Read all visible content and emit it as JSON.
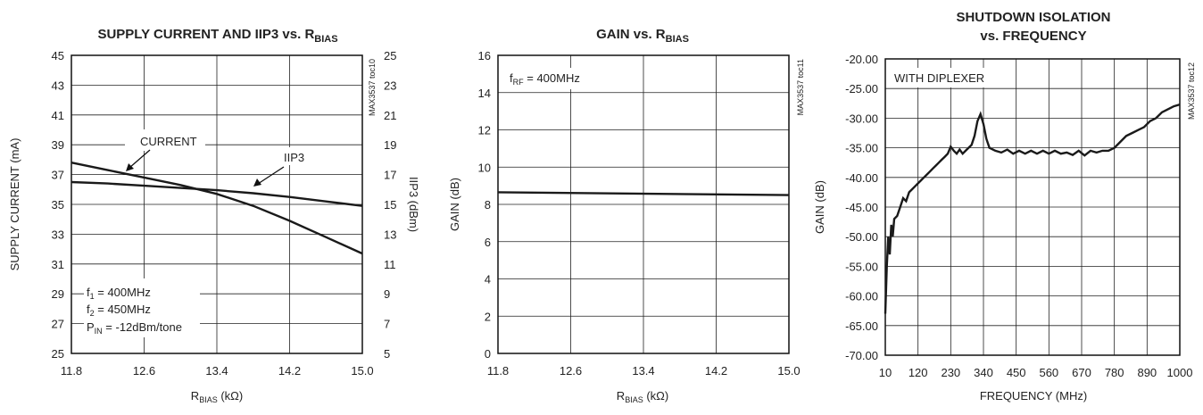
{
  "chart_data": [
    {
      "type": "line",
      "title": "SUPPLY CURRENT AND IIP3 vs. R",
      "title_sub": "BIAS",
      "xlabel": "R",
      "xlabel_sub": "BIAS",
      "xlabel_unit": " (kΩ)",
      "ylabel": "SUPPLY CURRENT (mA)",
      "y2label": "IIP3 (dBm)",
      "xlim": [
        11.8,
        15.0
      ],
      "ylim": [
        25,
        45
      ],
      "y2lim": [
        5,
        25
      ],
      "grid": true,
      "x_ticks": [
        "11.8",
        "12.6",
        "13.4",
        "14.2",
        "15.0"
      ],
      "y_ticks": [
        "45",
        "43",
        "41",
        "39",
        "37",
        "35",
        "33",
        "31",
        "29",
        "27",
        "25"
      ],
      "y2_ticks": [
        "25",
        "23",
        "21",
        "19",
        "17",
        "15",
        "13",
        "11",
        "9",
        "7",
        "5"
      ],
      "code": "MAX3537 toc10",
      "series": [
        {
          "name": "CURRENT",
          "axis": "left",
          "x": [
            11.8,
            12.2,
            12.6,
            13.0,
            13.4,
            13.8,
            14.2,
            14.6,
            15.0
          ],
          "y": [
            37.8,
            37.3,
            36.8,
            36.3,
            35.7,
            34.9,
            33.9,
            32.8,
            31.7
          ]
        },
        {
          "name": "IIP3",
          "axis": "right",
          "x": [
            11.8,
            12.2,
            12.6,
            13.0,
            13.4,
            13.8,
            14.2,
            14.6,
            15.0
          ],
          "y": [
            16.5,
            16.4,
            16.25,
            16.1,
            15.95,
            15.75,
            15.5,
            15.2,
            14.9
          ]
        }
      ],
      "annotations": [
        "CURRENT",
        "IIP3"
      ],
      "conditions": [
        {
          "base": "f",
          "sub": "1",
          "rest": " = 400MHz"
        },
        {
          "base": "f",
          "sub": "2",
          "rest": " = 450MHz"
        },
        {
          "base": "P",
          "sub": "IN",
          "rest": " = -12dBm/tone"
        }
      ]
    },
    {
      "type": "line",
      "title": "GAIN vs. R",
      "title_sub": "BIAS",
      "xlabel": "R",
      "xlabel_sub": "BIAS",
      "xlabel_unit": " (kΩ)",
      "ylabel": "GAIN (dB)",
      "xlim": [
        11.8,
        15.0
      ],
      "ylim": [
        0,
        16
      ],
      "grid": true,
      "x_ticks": [
        "11.8",
        "12.6",
        "13.4",
        "14.2",
        "15.0"
      ],
      "y_ticks": [
        "16",
        "14",
        "12",
        "10",
        "8",
        "6",
        "4",
        "2",
        "0"
      ],
      "code": "MAX3537 toc11",
      "series": [
        {
          "x": [
            11.8,
            15.0
          ],
          "y": [
            8.65,
            8.5
          ]
        }
      ],
      "conditions": [
        {
          "base": "f",
          "sub": "RF",
          "rest": " = 400MHz"
        }
      ]
    },
    {
      "type": "line",
      "title": "SHUTDOWN ISOLATION",
      "title_line2": "vs. FREQUENCY",
      "xlabel": "FREQUENCY (MHz)",
      "ylabel": "GAIN (dB)",
      "xlim": [
        10,
        1000
      ],
      "ylim": [
        -70,
        -20
      ],
      "grid": true,
      "x_ticks": [
        "10",
        "120",
        "230",
        "340",
        "450",
        "560",
        "670",
        "780",
        "890",
        "1000"
      ],
      "y_ticks": [
        "-20.00",
        "-25.00",
        "-30.00",
        "-35.00",
        "-40.00",
        "-45.00",
        "-50.00",
        "-55.00",
        "-60.00",
        "-65.00",
        "-70.00"
      ],
      "code": "MAX3537 toc12",
      "annotations": [
        "WITH DIPLEXER"
      ],
      "series": [
        {
          "x": [
            10,
            15,
            20,
            25,
            30,
            35,
            40,
            50,
            60,
            70,
            80,
            90,
            100,
            110,
            120,
            130,
            140,
            150,
            160,
            170,
            180,
            190,
            200,
            210,
            220,
            230,
            240,
            250,
            260,
            270,
            280,
            290,
            300,
            310,
            320,
            330,
            340,
            350,
            360,
            380,
            400,
            420,
            440,
            460,
            480,
            500,
            520,
            540,
            560,
            580,
            600,
            620,
            640,
            660,
            680,
            700,
            720,
            740,
            760,
            780,
            800,
            820,
            840,
            860,
            880,
            900,
            920,
            940,
            960,
            980,
            1000
          ],
          "y": [
            -63.0,
            -55.0,
            -50.0,
            -53.0,
            -48.0,
            -50.0,
            -47.0,
            -46.5,
            -45.0,
            -43.5,
            -44.0,
            -42.5,
            -42.0,
            -41.5,
            -41.0,
            -40.5,
            -40.0,
            -39.5,
            -39.0,
            -38.5,
            -38.0,
            -37.5,
            -37.0,
            -36.5,
            -36.0,
            -34.8,
            -35.5,
            -36.0,
            -35.3,
            -36.0,
            -35.5,
            -35.0,
            -34.5,
            -33.0,
            -30.5,
            -29.3,
            -31.0,
            -33.5,
            -35.0,
            -35.5,
            -35.8,
            -35.3,
            -36.0,
            -35.5,
            -36.0,
            -35.5,
            -36.0,
            -35.5,
            -36.0,
            -35.5,
            -36.0,
            -35.8,
            -36.2,
            -35.5,
            -36.3,
            -35.5,
            -35.8,
            -35.5,
            -35.5,
            -35.0,
            -34.0,
            -33.0,
            -32.5,
            -32.0,
            -31.5,
            -30.5,
            -30.0,
            -29.0,
            -28.5,
            -28.0,
            -27.7
          ]
        }
      ]
    }
  ]
}
